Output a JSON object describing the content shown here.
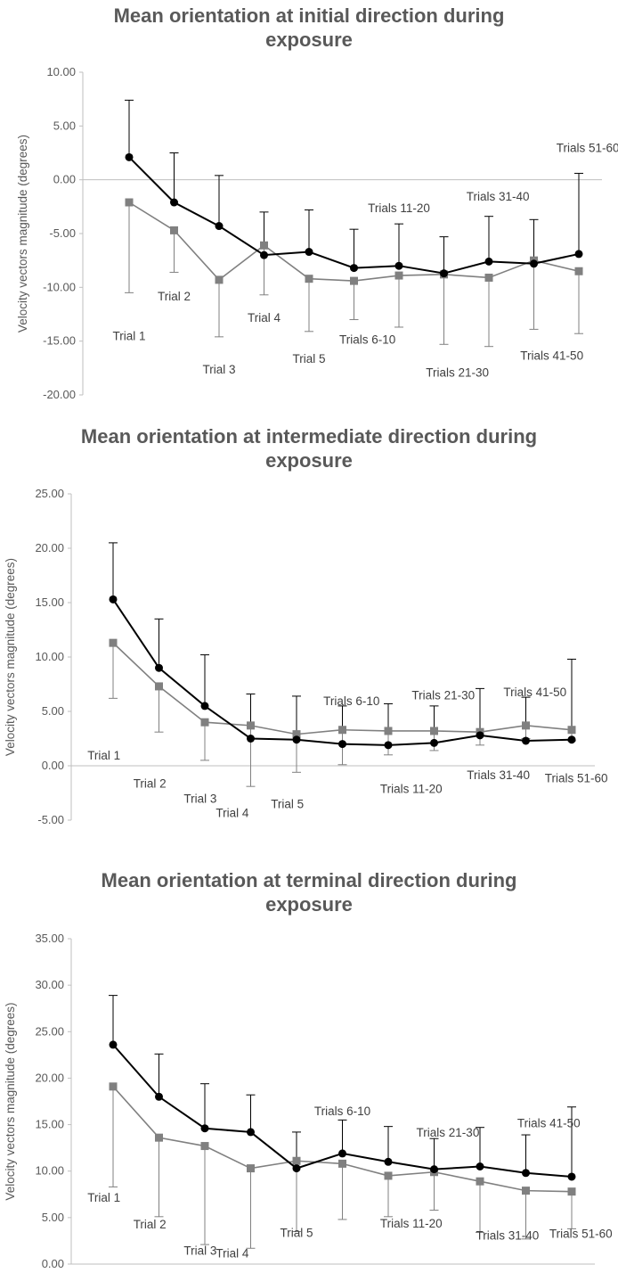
{
  "chart_data": [
    {
      "type": "line",
      "title_line1": "Mean orientation at initial direction during",
      "title_line2": "exposure",
      "ylabel": "Velocity vectors magnitude (degrees)",
      "ylim": [
        -20,
        10
      ],
      "ytick_step": 5,
      "yticks": [
        "10.00",
        "5.00",
        "0.00",
        "-5.00",
        "-10.00",
        "-15.00",
        "-20.00"
      ],
      "categories": [
        "Trial 1",
        "Trial 2",
        "Trial 3",
        "Trial 4",
        "Trial 5",
        "Trials 6-10",
        "Trials 11-20",
        "Trials 21-30",
        "Trials 31-40",
        "Trials 41-50",
        "Trials 51-60"
      ],
      "series": [
        {
          "color": "#000000",
          "marker": "circle",
          "values": [
            2.1,
            -2.1,
            -4.3,
            -7.0,
            -6.7,
            -8.2,
            -8.0,
            -8.7,
            -7.6,
            -7.8,
            -6.9
          ],
          "err_plus": [
            5.3,
            4.6,
            4.7,
            4.0,
            3.9,
            3.6,
            3.9,
            3.4,
            4.2,
            4.1,
            7.5
          ]
        },
        {
          "color": "#808080",
          "marker": "square",
          "values": [
            -2.1,
            -4.7,
            -9.3,
            -6.1,
            -9.2,
            -9.4,
            -8.9,
            -8.8,
            -9.1,
            -7.5,
            -8.5
          ],
          "err_minus": [
            8.4,
            3.9,
            5.3,
            4.6,
            4.9,
            3.6,
            4.8,
            6.5,
            6.4,
            6.4,
            5.8
          ]
        }
      ],
      "labels": [
        {
          "text": "Trial 1",
          "x": 1,
          "y": -14.5
        },
        {
          "text": "Trial 2",
          "x": 2,
          "y": -10.8
        },
        {
          "text": "Trial 3",
          "x": 3,
          "y": -17.6
        },
        {
          "text": "Trial 4",
          "x": 4,
          "y": -12.8
        },
        {
          "text": "Trial 5",
          "x": 5,
          "y": -16.6
        },
        {
          "text": "Trials 6-10",
          "x": 6.3,
          "y": -14.8
        },
        {
          "text": "Trials 11-20",
          "x": 7.0,
          "y": -2.6
        },
        {
          "text": "Trials 21-30",
          "x": 8.3,
          "y": -17.9
        },
        {
          "text": "Trials 31-40",
          "x": 9.2,
          "y": -1.5
        },
        {
          "text": "Trials 41-50",
          "x": 10.4,
          "y": -16.3
        },
        {
          "text": "Trials 51-60",
          "x": 11.2,
          "y": 3.0
        }
      ]
    },
    {
      "type": "line",
      "title_line1": "Mean orientation at intermediate direction during",
      "title_line2": "exposure",
      "ylabel": "Velocity vectors magnitude (degrees)",
      "ylim": [
        -5,
        25
      ],
      "ytick_step": 5,
      "yticks": [
        "25.00",
        "20.00",
        "15.00",
        "10.00",
        "5.00",
        "0.00",
        "-5.00"
      ],
      "categories": [
        "Trial 1",
        "Trial 2",
        "Trial 3",
        "Trial 4",
        "Trial 5",
        "Trials 6-10",
        "Trials 11-20",
        "Trials 21-30",
        "Trials 31-40",
        "Trials 41-50",
        "Trials 51-60"
      ],
      "series": [
        {
          "color": "#000000",
          "marker": "circle",
          "values": [
            15.3,
            9.0,
            5.5,
            2.5,
            2.4,
            2.0,
            1.9,
            2.1,
            2.8,
            2.3,
            2.4
          ],
          "err_plus": [
            5.2,
            4.5,
            4.7,
            4.1,
            4.0,
            3.5,
            3.8,
            3.4,
            4.3,
            4.0,
            7.4
          ]
        },
        {
          "color": "#808080",
          "marker": "square",
          "values": [
            11.3,
            7.3,
            4.0,
            3.7,
            2.9,
            3.3,
            3.2,
            3.2,
            3.1,
            3.7,
            3.3
          ],
          "err_minus": [
            5.1,
            4.2,
            3.5,
            5.6,
            3.5,
            3.2,
            2.2,
            1.8,
            1.2,
            1.2,
            1.0
          ]
        }
      ],
      "labels": [
        {
          "text": "Trial 1",
          "x": 0.8,
          "y": 1.0
        },
        {
          "text": "Trial 2",
          "x": 1.8,
          "y": -1.6
        },
        {
          "text": "Trial 3",
          "x": 2.9,
          "y": -3.0
        },
        {
          "text": "Trial 4",
          "x": 3.6,
          "y": -4.3
        },
        {
          "text": "Trial 5",
          "x": 4.8,
          "y": -3.5
        },
        {
          "text": "Trials 6-10",
          "x": 6.2,
          "y": 6.0
        },
        {
          "text": "Trials 11-20",
          "x": 7.5,
          "y": -2.1
        },
        {
          "text": "Trials 21-30",
          "x": 8.2,
          "y": 6.5
        },
        {
          "text": "Trials 31-40",
          "x": 9.4,
          "y": -0.8
        },
        {
          "text": "Trials 41-50",
          "x": 10.2,
          "y": 6.8
        },
        {
          "text": "Trials 51-60",
          "x": 11.1,
          "y": -1.1
        }
      ]
    },
    {
      "type": "line",
      "title_line1": "Mean orientation at terminal direction during",
      "title_line2": "exposure",
      "ylabel": "Velocity vectors magnitude (degrees)",
      "ylim": [
        0,
        35
      ],
      "ytick_step": 5,
      "yticks": [
        "35.00",
        "30.00",
        "25.00",
        "20.00",
        "15.00",
        "10.00",
        "5.00",
        "0.00"
      ],
      "categories": [
        "Trial 1",
        "Trial 2",
        "Trial 3",
        "Trial 4",
        "Trial 5",
        "Trials 6-10",
        "Trials 11-20",
        "Trials 21-30",
        "Trials 31-40",
        "Trials 41-50",
        "Trials 51-60"
      ],
      "series": [
        {
          "color": "#000000",
          "marker": "circle",
          "values": [
            23.6,
            18.0,
            14.6,
            14.2,
            10.3,
            11.9,
            11.0,
            10.2,
            10.5,
            9.8,
            9.4
          ],
          "err_plus": [
            5.3,
            4.6,
            4.8,
            4.0,
            3.9,
            3.6,
            3.8,
            3.3,
            4.2,
            4.1,
            7.5
          ]
        },
        {
          "color": "#808080",
          "marker": "square",
          "values": [
            19.1,
            13.6,
            12.7,
            10.3,
            11.1,
            10.8,
            9.5,
            9.9,
            8.9,
            7.9,
            7.8
          ],
          "err_minus": [
            10.8,
            8.5,
            10.6,
            8.6,
            7.6,
            6.0,
            4.4,
            4.1,
            5.5,
            5.2,
            4.0
          ]
        }
      ],
      "labels": [
        {
          "text": "Trial 1",
          "x": 0.8,
          "y": 7.2
        },
        {
          "text": "Trial 2",
          "x": 1.8,
          "y": 4.3
        },
        {
          "text": "Trial 3",
          "x": 2.9,
          "y": 1.5
        },
        {
          "text": "Trial 4",
          "x": 3.6,
          "y": 1.2
        },
        {
          "text": "Trial 5",
          "x": 5.0,
          "y": 3.4
        },
        {
          "text": "Trials 6-10",
          "x": 6.0,
          "y": 16.5
        },
        {
          "text": "Trials 11-20",
          "x": 7.5,
          "y": 4.4
        },
        {
          "text": "Trials 21-30",
          "x": 8.3,
          "y": 14.2
        },
        {
          "text": "Trials 31-40",
          "x": 9.6,
          "y": 3.1
        },
        {
          "text": "Trials 41-50",
          "x": 10.5,
          "y": 15.2
        },
        {
          "text": "Trials 51-60",
          "x": 11.2,
          "y": 3.3
        }
      ]
    }
  ]
}
